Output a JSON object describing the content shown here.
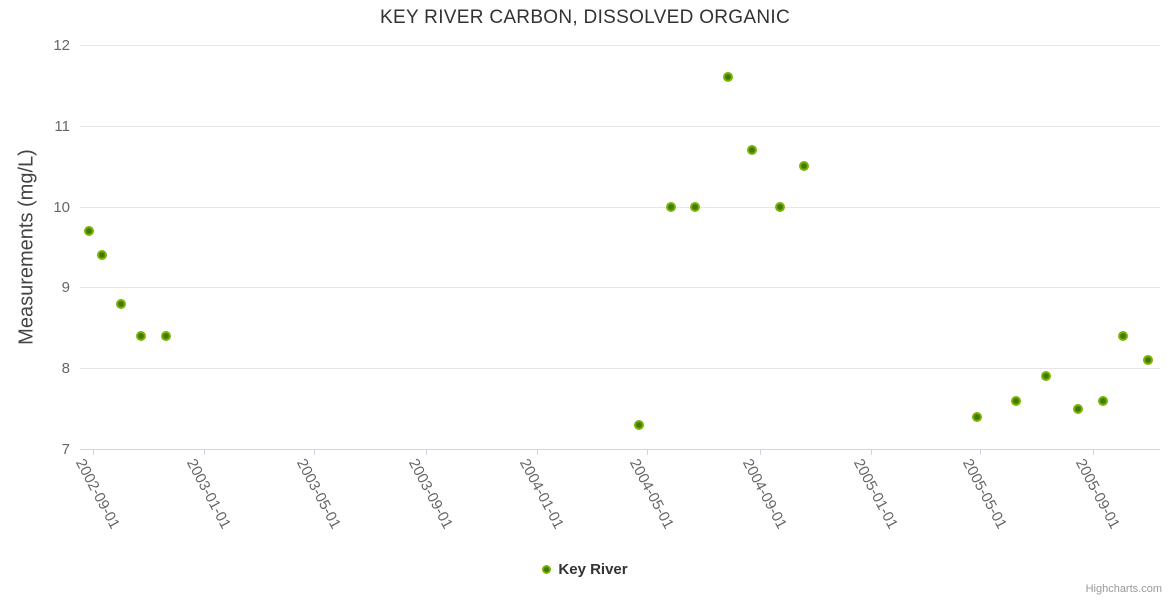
{
  "chart_data": {
    "type": "scatter",
    "title": "KEY RIVER CARBON, DISSOLVED ORGANIC",
    "xlabel": "",
    "ylabel": "Measurements (mg/L)",
    "ylim": [
      7,
      12
    ],
    "y_ticks": [
      12,
      11,
      10,
      9,
      8,
      7
    ],
    "x_range": [
      "2002-08-18",
      "2005-11-14"
    ],
    "x_tick_labels": [
      "2002-09-01",
      "2003-01-01",
      "2003-05-01",
      "2003-09-01",
      "2004-01-01",
      "2004-05-01",
      "2004-09-01",
      "2005-01-01",
      "2005-05-01",
      "2005-09-01"
    ],
    "grid": true,
    "legend": {
      "position": "bottom-center",
      "items": [
        {
          "label": "Key River"
        }
      ]
    },
    "series": [
      {
        "name": "Key River",
        "marker_outer_color": "#7cb400",
        "marker_inner_color": "#3f7a05",
        "points": [
          {
            "x": "2002-08-28",
            "y": 9.7
          },
          {
            "x": "2002-09-11",
            "y": 9.4
          },
          {
            "x": "2002-10-02",
            "y": 8.8
          },
          {
            "x": "2002-10-24",
            "y": 8.4
          },
          {
            "x": "2002-11-20",
            "y": 8.4
          },
          {
            "x": "2004-04-22",
            "y": 7.3
          },
          {
            "x": "2004-05-27",
            "y": 10.0
          },
          {
            "x": "2004-06-22",
            "y": 10.0
          },
          {
            "x": "2004-07-28",
            "y": 11.6
          },
          {
            "x": "2004-08-24",
            "y": 10.7
          },
          {
            "x": "2004-09-23",
            "y": 10.0
          },
          {
            "x": "2004-10-20",
            "y": 10.5
          },
          {
            "x": "2005-04-27",
            "y": 7.4
          },
          {
            "x": "2005-06-09",
            "y": 7.6
          },
          {
            "x": "2005-07-12",
            "y": 7.9
          },
          {
            "x": "2005-08-16",
            "y": 7.5
          },
          {
            "x": "2005-09-13",
            "y": 7.6
          },
          {
            "x": "2005-10-04",
            "y": 8.4
          },
          {
            "x": "2005-11-01",
            "y": 8.1
          }
        ]
      }
    ],
    "credit": "Highcharts.com"
  },
  "colors": {
    "gridline": "#e6e6e6",
    "axis_line": "#ccd6eb",
    "title_text": "#333333",
    "axis_label_text": "#666666",
    "legend_text": "#333333",
    "credit_text": "#999999"
  }
}
